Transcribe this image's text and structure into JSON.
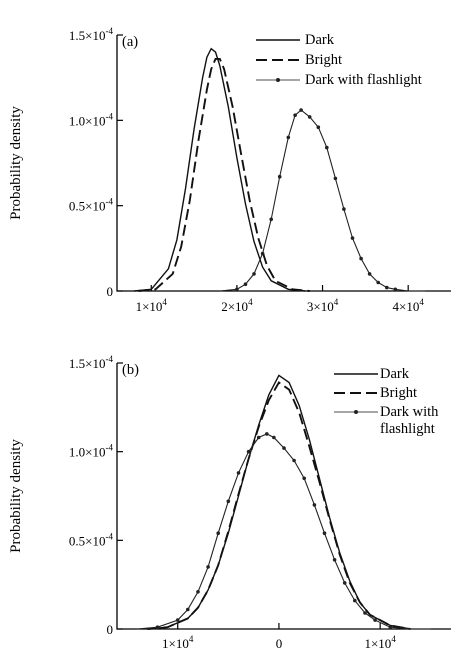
{
  "chart_data": [
    {
      "type": "line",
      "panel_label": "(a)",
      "ylabel": "Probability density",
      "xlabel": "",
      "xlim": [
        6000,
        45000
      ],
      "ylim": [
        0,
        0.00015
      ],
      "x_ticks": [
        {
          "value": 10000,
          "label": "1×10",
          "exp": "4"
        },
        {
          "value": 20000,
          "label": "2×10",
          "exp": "4"
        },
        {
          "value": 30000,
          "label": "3×10",
          "exp": "4"
        },
        {
          "value": 40000,
          "label": "4×10",
          "exp": "4"
        }
      ],
      "y_ticks": [
        {
          "value": 0,
          "label": "0",
          "exp": ""
        },
        {
          "value": 5e-05,
          "label": "0.5×10",
          "exp": "-4"
        },
        {
          "value": 0.0001,
          "label": "1.0×10",
          "exp": "-4"
        },
        {
          "value": 0.00015,
          "label": "1.5×10",
          "exp": "-4"
        }
      ],
      "legend_position": "top-right",
      "series": [
        {
          "name": "Dark",
          "style": "solid",
          "color": "#111111",
          "x": [
            8000,
            10000,
            12000,
            13000,
            14000,
            15000,
            16000,
            16500,
            17000,
            17500,
            18000,
            19000,
            20000,
            21000,
            22000,
            23000,
            24000,
            26000,
            28000
          ],
          "y": [
            0,
            1e-06,
            1.3e-05,
            3e-05,
            6e-05,
            9.5e-05,
            0.000125,
            0.000137,
            0.000142,
            0.00014,
            0.000132,
            0.000108,
            7.8e-05,
            5.1e-05,
            2.9e-05,
            1.4e-05,
            6e-06,
            1e-06,
            0
          ]
        },
        {
          "name": "Bright",
          "style": "dashed",
          "color": "#111111",
          "x": [
            8500,
            10500,
            12500,
            13500,
            14500,
            15500,
            16500,
            17000,
            17500,
            18000,
            18500,
            19500,
            20500,
            21500,
            22500,
            23500,
            24500,
            26500,
            28500
          ],
          "y": [
            0,
            1e-06,
            1e-05,
            2.6e-05,
            5.3e-05,
            8.8e-05,
            0.000118,
            0.00013,
            0.000136,
            0.000136,
            0.00013,
            0.000108,
            8e-05,
            5.3e-05,
            3.1e-05,
            1.5e-05,
            6e-06,
            1e-06,
            0
          ]
        },
        {
          "name": "Dark with flashlight",
          "style": "dotted-line",
          "color": "#222222",
          "x": [
            18000,
            20000,
            21000,
            22000,
            23000,
            24000,
            25000,
            26000,
            26800,
            27500,
            28500,
            29500,
            30500,
            31500,
            32500,
            33500,
            34500,
            35500,
            36500,
            37500,
            38500,
            40000,
            42000
          ],
          "y": [
            0,
            1e-06,
            4e-06,
            1e-05,
            2.2e-05,
            4.2e-05,
            6.7e-05,
            9e-05,
            0.000103,
            0.000106,
            0.000102,
            9.6e-05,
            8.4e-05,
            6.6e-05,
            4.8e-05,
            3.1e-05,
            1.9e-05,
            1e-05,
            5e-06,
            2e-06,
            1e-06,
            0,
            0
          ]
        }
      ]
    },
    {
      "type": "line",
      "panel_label": "(b)",
      "ylabel": "Probability density",
      "xlabel": "",
      "xlim": [
        -16000,
        17000
      ],
      "ylim": [
        0,
        0.00015
      ],
      "x_ticks": [
        {
          "value": -10000,
          "label": "1×10",
          "exp": "4"
        },
        {
          "value": 0,
          "label": "0",
          "exp": ""
        },
        {
          "value": 10000,
          "label": "1×10",
          "exp": "4"
        }
      ],
      "y_ticks": [
        {
          "value": 0,
          "label": "0",
          "exp": ""
        },
        {
          "value": 5e-05,
          "label": "0.5×10",
          "exp": "-4"
        },
        {
          "value": 0.0001,
          "label": "1.0×10",
          "exp": "-4"
        },
        {
          "value": 0.00015,
          "label": "1.5×10",
          "exp": "-4"
        }
      ],
      "legend_position": "top-right",
      "series": [
        {
          "name": "Dark",
          "style": "solid",
          "color": "#111111",
          "x": [
            -13000,
            -11000,
            -9000,
            -8000,
            -7000,
            -6000,
            -5000,
            -4000,
            -3000,
            -2000,
            -1000,
            0,
            1000,
            2000,
            3000,
            4000,
            5000,
            6000,
            7000,
            8000,
            9000,
            11000,
            13000
          ],
          "y": [
            0,
            1e-06,
            6e-06,
            1.2e-05,
            2.2e-05,
            3.6e-05,
            5.4e-05,
            7.5e-05,
            9.6e-05,
            0.000115,
            0.000132,
            0.000143,
            0.000139,
            0.000126,
            0.000107,
            8.5e-05,
            6.3e-05,
            4.3e-05,
            2.7e-05,
            1.5e-05,
            8e-06,
            2e-06,
            0
          ]
        },
        {
          "name": "Bright",
          "style": "dashed",
          "color": "#111111",
          "x": [
            -13000,
            -11000,
            -9000,
            -8000,
            -7000,
            -6000,
            -5000,
            -4000,
            -3000,
            -2000,
            -1000,
            0,
            1000,
            2000,
            3000,
            4000,
            5000,
            6000,
            7000,
            8000,
            9000,
            11000,
            13000
          ],
          "y": [
            0,
            1e-06,
            6e-06,
            1.2e-05,
            2.2e-05,
            3.6e-05,
            5.5e-05,
            7.6e-05,
            9.6e-05,
            0.000114,
            0.000129,
            0.000139,
            0.000135,
            0.000122,
            0.000103,
            8.3e-05,
            6.2e-05,
            4.2e-05,
            2.6e-05,
            1.5e-05,
            8e-06,
            2e-06,
            0
          ]
        },
        {
          "name": "Dark with flashlight",
          "style": "dotted-line",
          "color": "#222222",
          "x": [
            -14000,
            -12000,
            -10000,
            -9000,
            -8000,
            -7000,
            -6000,
            -5000,
            -4000,
            -3000,
            -2000,
            -1200,
            -500,
            500,
            1500,
            2500,
            3500,
            4500,
            5500,
            6500,
            7500,
            8500,
            9500,
            11000,
            13000,
            15000
          ],
          "y": [
            0,
            1e-06,
            5e-06,
            1.1e-05,
            2.1e-05,
            3.5e-05,
            5.4e-05,
            7.2e-05,
            8.8e-05,
            0.0001,
            0.000108,
            0.00011,
            0.000108,
            0.000102,
            9.5e-05,
            8.5e-05,
            7e-05,
            5.4e-05,
            3.9e-05,
            2.6e-05,
            1.6e-05,
            9e-06,
            5e-06,
            1e-06,
            0,
            0
          ]
        }
      ]
    }
  ]
}
